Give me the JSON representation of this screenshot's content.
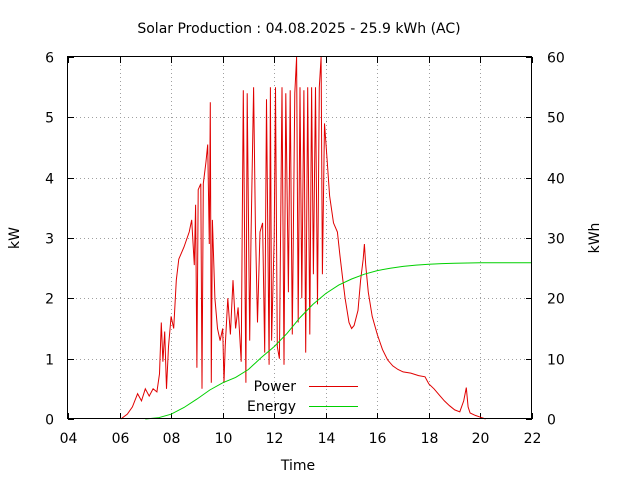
{
  "chart_data": {
    "type": "line",
    "title": "Solar Production : 04.08.2025 - 25.9 kWh (AC)",
    "xlabel": "Time",
    "ylabel_left": "kW",
    "ylabel_right": "kWh",
    "xlim": [
      4,
      22
    ],
    "ylim_left": [
      0,
      6
    ],
    "ylim_right": [
      0,
      60
    ],
    "x_tick_labels": [
      "04",
      "06",
      "08",
      "10",
      "12",
      "14",
      "16",
      "18",
      "20",
      "22"
    ],
    "y_left_tick_labels": [
      "0",
      "1",
      "2",
      "3",
      "4",
      "5",
      "6"
    ],
    "y_right_tick_labels": [
      "0",
      "10",
      "20",
      "30",
      "40",
      "50",
      "60"
    ],
    "grid": true,
    "legend_position": "bottom-right inside",
    "series": [
      {
        "name": "Power",
        "axis": "left",
        "unit": "kW",
        "color": "#e00000",
        "points": [
          [
            6.05,
            0
          ],
          [
            6.3,
            0.08
          ],
          [
            6.5,
            0.2
          ],
          [
            6.7,
            0.42
          ],
          [
            6.85,
            0.3
          ],
          [
            7.0,
            0.5
          ],
          [
            7.15,
            0.38
          ],
          [
            7.3,
            0.5
          ],
          [
            7.45,
            0.45
          ],
          [
            7.55,
            0.75
          ],
          [
            7.62,
            1.6
          ],
          [
            7.68,
            0.95
          ],
          [
            7.75,
            1.45
          ],
          [
            7.82,
            0.5
          ],
          [
            7.9,
            1.2
          ],
          [
            8.0,
            1.7
          ],
          [
            8.1,
            1.5
          ],
          [
            8.2,
            2.3
          ],
          [
            8.3,
            2.65
          ],
          [
            8.5,
            2.85
          ],
          [
            8.7,
            3.1
          ],
          [
            8.8,
            3.3
          ],
          [
            8.9,
            2.55
          ],
          [
            8.95,
            3.55
          ],
          [
            9.0,
            0.85
          ],
          [
            9.05,
            3.8
          ],
          [
            9.15,
            3.9
          ],
          [
            9.2,
            0.5
          ],
          [
            9.25,
            3.9
          ],
          [
            9.35,
            4.25
          ],
          [
            9.42,
            4.55
          ],
          [
            9.48,
            2.9
          ],
          [
            9.52,
            5.25
          ],
          [
            9.56,
            0.6
          ],
          [
            9.6,
            3.3
          ],
          [
            9.7,
            2.0
          ],
          [
            9.8,
            1.5
          ],
          [
            9.9,
            1.3
          ],
          [
            10.0,
            1.5
          ],
          [
            10.05,
            0.6
          ],
          [
            10.1,
            1.2
          ],
          [
            10.2,
            2.0
          ],
          [
            10.3,
            1.4
          ],
          [
            10.4,
            2.3
          ],
          [
            10.5,
            1.5
          ],
          [
            10.6,
            1.85
          ],
          [
            10.72,
            0.95
          ],
          [
            10.8,
            5.45
          ],
          [
            10.9,
            0.6
          ],
          [
            10.95,
            5.4
          ],
          [
            11.05,
            1.3
          ],
          [
            11.1,
            3.0
          ],
          [
            11.2,
            5.5
          ],
          [
            11.27,
            3.2
          ],
          [
            11.35,
            1.6
          ],
          [
            11.45,
            3.1
          ],
          [
            11.55,
            3.25
          ],
          [
            11.63,
            1.1
          ],
          [
            11.7,
            5.3
          ],
          [
            11.8,
            0.9
          ],
          [
            11.85,
            5.5
          ],
          [
            11.9,
            1.3
          ],
          [
            12.0,
            3.0
          ],
          [
            12.05,
            5.5
          ],
          [
            12.12,
            1.2
          ],
          [
            12.2,
            1.0
          ],
          [
            12.3,
            5.5
          ],
          [
            12.38,
            0.9
          ],
          [
            12.45,
            5.4
          ],
          [
            12.55,
            2.1
          ],
          [
            12.62,
            5.45
          ],
          [
            12.7,
            1.4
          ],
          [
            12.8,
            5.4
          ],
          [
            12.87,
            6.0
          ],
          [
            12.93,
            1.6
          ],
          [
            13.0,
            5.5
          ],
          [
            13.07,
            2.0
          ],
          [
            13.15,
            5.45
          ],
          [
            13.22,
            1.1
          ],
          [
            13.3,
            5.5
          ],
          [
            13.38,
            1.4
          ],
          [
            13.45,
            5.5
          ],
          [
            13.52,
            2.4
          ],
          [
            13.6,
            5.5
          ],
          [
            13.68,
            1.9
          ],
          [
            13.75,
            5.5
          ],
          [
            13.82,
            6.0
          ],
          [
            13.87,
            2.4
          ],
          [
            13.95,
            4.9
          ],
          [
            14.05,
            4.3
          ],
          [
            14.15,
            3.7
          ],
          [
            14.3,
            3.25
          ],
          [
            14.45,
            3.1
          ],
          [
            14.55,
            2.7
          ],
          [
            14.65,
            2.35
          ],
          [
            14.75,
            2.0
          ],
          [
            14.9,
            1.6
          ],
          [
            15.0,
            1.5
          ],
          [
            15.1,
            1.55
          ],
          [
            15.25,
            1.8
          ],
          [
            15.35,
            2.3
          ],
          [
            15.45,
            2.65
          ],
          [
            15.5,
            2.9
          ],
          [
            15.55,
            2.55
          ],
          [
            15.65,
            2.1
          ],
          [
            15.8,
            1.7
          ],
          [
            16.0,
            1.4
          ],
          [
            16.2,
            1.15
          ],
          [
            16.4,
            0.98
          ],
          [
            16.6,
            0.88
          ],
          [
            16.8,
            0.82
          ],
          [
            17.0,
            0.78
          ],
          [
            17.3,
            0.76
          ],
          [
            17.6,
            0.72
          ],
          [
            17.85,
            0.7
          ],
          [
            18.0,
            0.58
          ],
          [
            18.2,
            0.5
          ],
          [
            18.4,
            0.4
          ],
          [
            18.6,
            0.3
          ],
          [
            18.8,
            0.22
          ],
          [
            19.0,
            0.15
          ],
          [
            19.2,
            0.12
          ],
          [
            19.35,
            0.3
          ],
          [
            19.45,
            0.52
          ],
          [
            19.52,
            0.2
          ],
          [
            19.6,
            0.1
          ],
          [
            19.8,
            0.06
          ],
          [
            20.0,
            0.03
          ],
          [
            20.2,
            0
          ]
        ]
      },
      {
        "name": "Energy",
        "axis": "right",
        "unit": "kWh",
        "color": "#00d000",
        "points": [
          [
            7.0,
            0
          ],
          [
            7.5,
            0.2
          ],
          [
            8.0,
            0.8
          ],
          [
            8.5,
            1.9
          ],
          [
            9.0,
            3.3
          ],
          [
            9.5,
            4.8
          ],
          [
            10.0,
            6.0
          ],
          [
            10.5,
            6.9
          ],
          [
            11.0,
            8.2
          ],
          [
            11.5,
            10.2
          ],
          [
            12.0,
            12.0
          ],
          [
            12.5,
            14.2
          ],
          [
            13.0,
            16.8
          ],
          [
            13.5,
            19.0
          ],
          [
            14.0,
            20.8
          ],
          [
            14.5,
            22.2
          ],
          [
            15.0,
            23.2
          ],
          [
            15.5,
            24.0
          ],
          [
            16.0,
            24.6
          ],
          [
            16.5,
            25.0
          ],
          [
            17.0,
            25.3
          ],
          [
            17.5,
            25.5
          ],
          [
            18.0,
            25.65
          ],
          [
            18.5,
            25.75
          ],
          [
            19.0,
            25.82
          ],
          [
            19.5,
            25.86
          ],
          [
            20.0,
            25.9
          ],
          [
            22.0,
            25.9
          ]
        ]
      }
    ]
  }
}
